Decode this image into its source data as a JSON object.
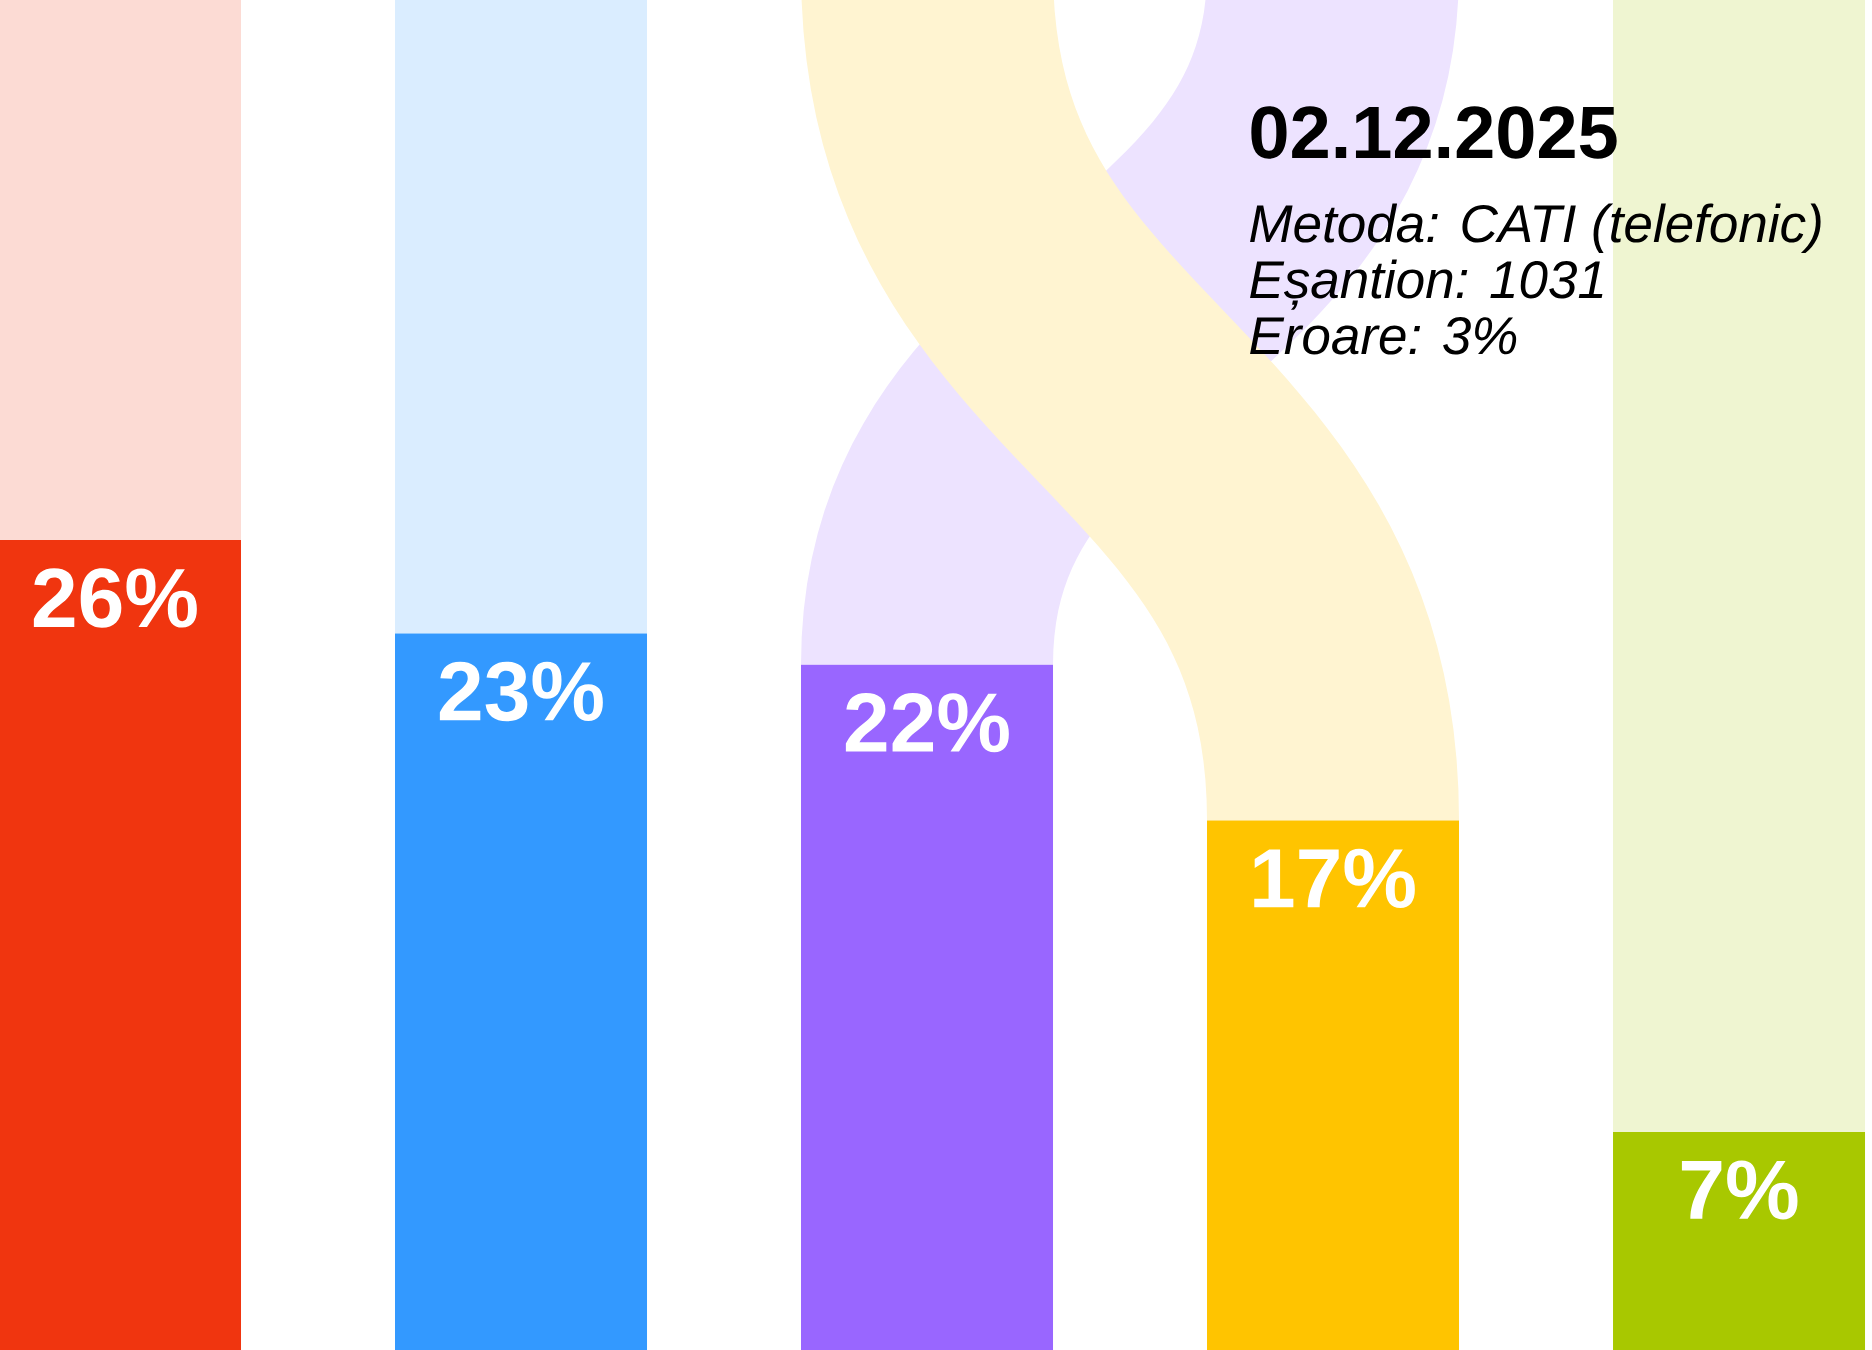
{
  "chart_data": {
    "type": "bar",
    "title": "02.12.2025",
    "annotations": [
      "Metoda: CATI (telefonic)",
      "Eșantion: 1031",
      "Eroare: 3%"
    ],
    "categories": [
      null,
      null,
      null,
      null,
      null
    ],
    "values": [
      26,
      23,
      22,
      17,
      7
    ],
    "value_labels": [
      "26%",
      "23%",
      "22%",
      "17%",
      "7%"
    ],
    "colors": [
      "#f0350f",
      "#3399ff",
      "#9966ff",
      "#ffc400",
      "#a8c800"
    ]
  }
}
